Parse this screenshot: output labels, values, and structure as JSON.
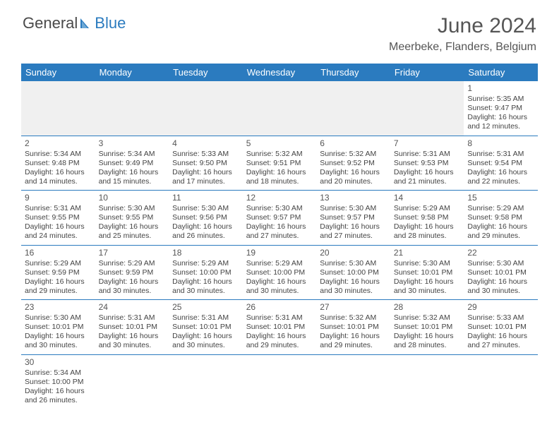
{
  "logo": {
    "text1": "General",
    "text2": "Blue"
  },
  "title": "June 2024",
  "location": "Meerbeke, Flanders, Belgium",
  "brand_color": "#2b7bbf",
  "text_color": "#444444",
  "header_bg": "#2b7bbf",
  "header_fg": "#ffffff",
  "offweek_bg": "#f0f0f0",
  "daynames": [
    "Sunday",
    "Monday",
    "Tuesday",
    "Wednesday",
    "Thursday",
    "Friday",
    "Saturday"
  ],
  "weeks": [
    [
      null,
      null,
      null,
      null,
      null,
      null,
      {
        "num": "1",
        "sunrise": "5:35 AM",
        "sunset": "9:47 PM",
        "daylight": "16 hours and 12 minutes."
      }
    ],
    [
      {
        "num": "2",
        "sunrise": "5:34 AM",
        "sunset": "9:48 PM",
        "daylight": "16 hours and 14 minutes."
      },
      {
        "num": "3",
        "sunrise": "5:34 AM",
        "sunset": "9:49 PM",
        "daylight": "16 hours and 15 minutes."
      },
      {
        "num": "4",
        "sunrise": "5:33 AM",
        "sunset": "9:50 PM",
        "daylight": "16 hours and 17 minutes."
      },
      {
        "num": "5",
        "sunrise": "5:32 AM",
        "sunset": "9:51 PM",
        "daylight": "16 hours and 18 minutes."
      },
      {
        "num": "6",
        "sunrise": "5:32 AM",
        "sunset": "9:52 PM",
        "daylight": "16 hours and 20 minutes."
      },
      {
        "num": "7",
        "sunrise": "5:31 AM",
        "sunset": "9:53 PM",
        "daylight": "16 hours and 21 minutes."
      },
      {
        "num": "8",
        "sunrise": "5:31 AM",
        "sunset": "9:54 PM",
        "daylight": "16 hours and 22 minutes."
      }
    ],
    [
      {
        "num": "9",
        "sunrise": "5:31 AM",
        "sunset": "9:55 PM",
        "daylight": "16 hours and 24 minutes."
      },
      {
        "num": "10",
        "sunrise": "5:30 AM",
        "sunset": "9:55 PM",
        "daylight": "16 hours and 25 minutes."
      },
      {
        "num": "11",
        "sunrise": "5:30 AM",
        "sunset": "9:56 PM",
        "daylight": "16 hours and 26 minutes."
      },
      {
        "num": "12",
        "sunrise": "5:30 AM",
        "sunset": "9:57 PM",
        "daylight": "16 hours and 27 minutes."
      },
      {
        "num": "13",
        "sunrise": "5:30 AM",
        "sunset": "9:57 PM",
        "daylight": "16 hours and 27 minutes."
      },
      {
        "num": "14",
        "sunrise": "5:29 AM",
        "sunset": "9:58 PM",
        "daylight": "16 hours and 28 minutes."
      },
      {
        "num": "15",
        "sunrise": "5:29 AM",
        "sunset": "9:58 PM",
        "daylight": "16 hours and 29 minutes."
      }
    ],
    [
      {
        "num": "16",
        "sunrise": "5:29 AM",
        "sunset": "9:59 PM",
        "daylight": "16 hours and 29 minutes."
      },
      {
        "num": "17",
        "sunrise": "5:29 AM",
        "sunset": "9:59 PM",
        "daylight": "16 hours and 30 minutes."
      },
      {
        "num": "18",
        "sunrise": "5:29 AM",
        "sunset": "10:00 PM",
        "daylight": "16 hours and 30 minutes."
      },
      {
        "num": "19",
        "sunrise": "5:29 AM",
        "sunset": "10:00 PM",
        "daylight": "16 hours and 30 minutes."
      },
      {
        "num": "20",
        "sunrise": "5:30 AM",
        "sunset": "10:00 PM",
        "daylight": "16 hours and 30 minutes."
      },
      {
        "num": "21",
        "sunrise": "5:30 AM",
        "sunset": "10:01 PM",
        "daylight": "16 hours and 30 minutes."
      },
      {
        "num": "22",
        "sunrise": "5:30 AM",
        "sunset": "10:01 PM",
        "daylight": "16 hours and 30 minutes."
      }
    ],
    [
      {
        "num": "23",
        "sunrise": "5:30 AM",
        "sunset": "10:01 PM",
        "daylight": "16 hours and 30 minutes."
      },
      {
        "num": "24",
        "sunrise": "5:31 AM",
        "sunset": "10:01 PM",
        "daylight": "16 hours and 30 minutes."
      },
      {
        "num": "25",
        "sunrise": "5:31 AM",
        "sunset": "10:01 PM",
        "daylight": "16 hours and 30 minutes."
      },
      {
        "num": "26",
        "sunrise": "5:31 AM",
        "sunset": "10:01 PM",
        "daylight": "16 hours and 29 minutes."
      },
      {
        "num": "27",
        "sunrise": "5:32 AM",
        "sunset": "10:01 PM",
        "daylight": "16 hours and 29 minutes."
      },
      {
        "num": "28",
        "sunrise": "5:32 AM",
        "sunset": "10:01 PM",
        "daylight": "16 hours and 28 minutes."
      },
      {
        "num": "29",
        "sunrise": "5:33 AM",
        "sunset": "10:01 PM",
        "daylight": "16 hours and 27 minutes."
      }
    ],
    [
      {
        "num": "30",
        "sunrise": "5:34 AM",
        "sunset": "10:00 PM",
        "daylight": "16 hours and 26 minutes."
      },
      null,
      null,
      null,
      null,
      null,
      null
    ]
  ],
  "labels": {
    "sunrise": "Sunrise:",
    "sunset": "Sunset:",
    "daylight": "Daylight:"
  }
}
